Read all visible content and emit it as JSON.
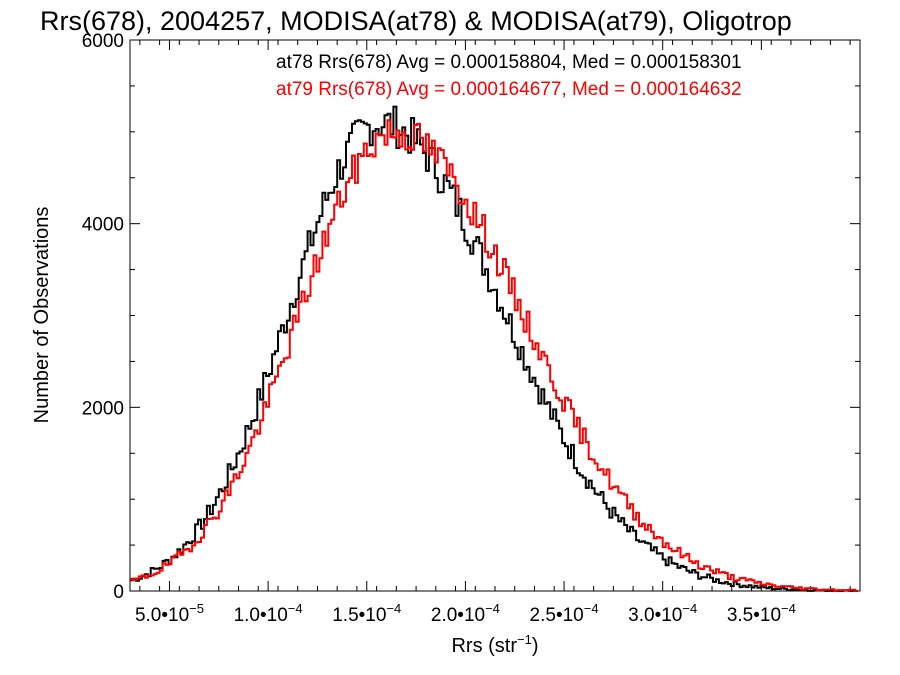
{
  "chart_data": {
    "type": "histogram",
    "title": "Rrs(678), 2004257, MODISA(at78) & MODISA(at79), Oligotrop",
    "xlabel": "Rrs (str",
    "xlabel_sup": "-1",
    "xlabel_close": ")",
    "ylabel": "Number of Observations",
    "xlim": [
      3e-05,
      0.0004
    ],
    "ylim": [
      0,
      6000
    ],
    "x_ticks": [
      {
        "value": 5e-05,
        "mantissa": "5.0",
        "exp": "-5"
      },
      {
        "value": 0.0001,
        "mantissa": "1.0",
        "exp": "-4"
      },
      {
        "value": 0.00015,
        "mantissa": "1.5",
        "exp": "-4"
      },
      {
        "value": 0.0002,
        "mantissa": "2.0",
        "exp": "-4"
      },
      {
        "value": 0.00025,
        "mantissa": "2.5",
        "exp": "-4"
      },
      {
        "value": 0.0003,
        "mantissa": "3.0",
        "exp": "-4"
      },
      {
        "value": 0.00035,
        "mantissa": "3.5",
        "exp": "-4"
      }
    ],
    "y_ticks": [
      0,
      2000,
      4000,
      6000
    ],
    "bin_start": 3e-05,
    "bin_width": 1.5e-06,
    "series": [
      {
        "name": "at78 Rrs(678) Avg = 0.000158804, Med = 0.000158301",
        "color": "#000000",
        "mean": 0.000157,
        "sd": 4.6e-05,
        "peak": 5100,
        "skew": 0.35,
        "noise": 230,
        "seed": 7
      },
      {
        "name": "at79 Rrs(678) Avg = 0.000164677, Med = 0.000164632",
        "color": "#ff0000",
        "mean": 0.000164,
        "sd": 4.8e-05,
        "peak": 5000,
        "skew": 0.35,
        "noise": 200,
        "seed": 19
      }
    ]
  }
}
